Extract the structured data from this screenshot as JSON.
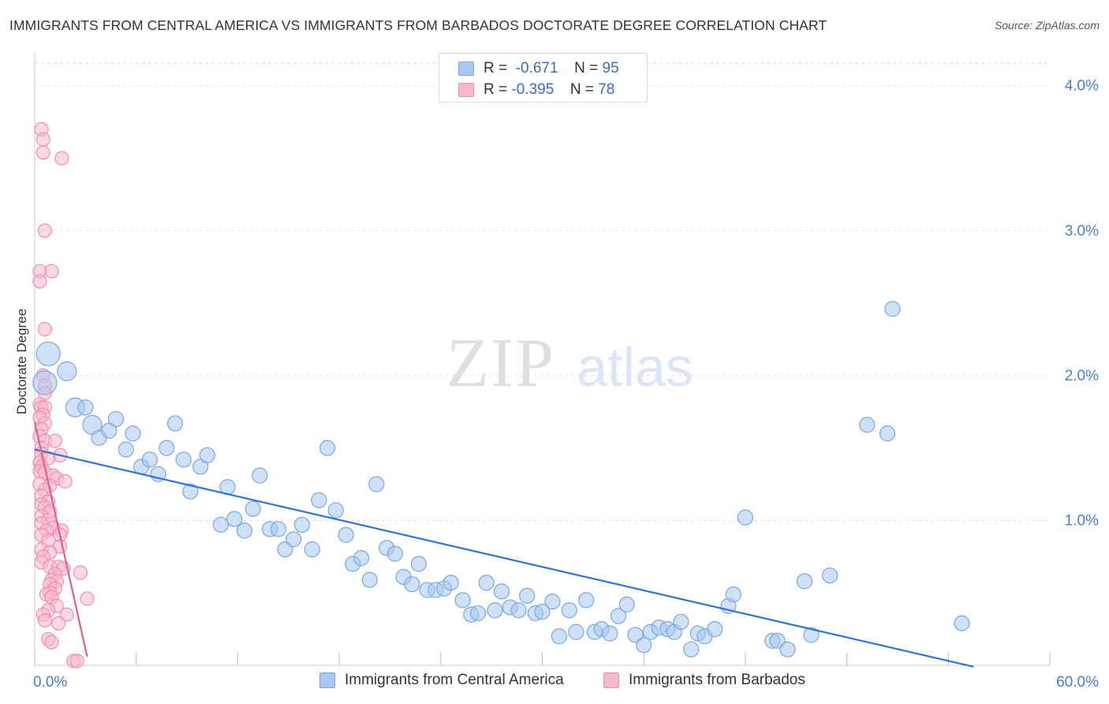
{
  "header": {
    "title": "IMMIGRANTS FROM CENTRAL AMERICA VS IMMIGRANTS FROM BARBADOS DOCTORATE DEGREE CORRELATION CHART",
    "source": "Source: ZipAtlas.com"
  },
  "watermark": {
    "zip": "ZIP",
    "atlas": "atlas"
  },
  "legend": {
    "rows": [
      {
        "r_label": "R =",
        "r_value": "-0.671",
        "n_label": "N =",
        "n_value": "95"
      },
      {
        "r_label": "R =",
        "r_value": "-0.395",
        "n_label": "N =",
        "n_value": "78"
      }
    ]
  },
  "colors": {
    "blue_fill": "#a8c8f0",
    "blue_stroke": "#7aa6e0",
    "blue_line": "#2f74d0",
    "pink_fill": "#f7b8cc",
    "pink_stroke": "#ee8fae",
    "pink_line": "#e0608a",
    "grid": "#dddddd",
    "axis_text": "#4a7cc9"
  },
  "chart_data": {
    "type": "scatter",
    "title": "IMMIGRANTS FROM CENTRAL AMERICA VS IMMIGRANTS FROM BARBADOS DOCTORATE DEGREE CORRELATION CHART",
    "xlabel": "",
    "ylabel": "Doctorate Degree",
    "xlim": [
      0,
      60
    ],
    "ylim": [
      0,
      4.2
    ],
    "x_tick_labels": [
      "0.0%",
      "60.0%"
    ],
    "y_ticks": [
      {
        "value": 1.0,
        "label": "1.0%"
      },
      {
        "value": 2.0,
        "label": "2.0%"
      },
      {
        "value": 3.0,
        "label": "3.0%"
      },
      {
        "value": 4.0,
        "label": "4.0%"
      }
    ],
    "legend_position": "top-center",
    "series": [
      {
        "name": "Immigrants from Central America",
        "color": "blue",
        "r": "-0.671",
        "n": "95",
        "trend": {
          "x": [
            0,
            55.5
          ],
          "y": [
            1.49,
            -0.01
          ]
        },
        "points": [
          [
            0.8,
            2.15,
            3
          ],
          [
            0.6,
            1.95,
            3
          ],
          [
            1.9,
            2.03,
            2
          ],
          [
            2.4,
            1.78,
            2
          ],
          [
            3.0,
            1.78,
            1
          ],
          [
            3.4,
            1.66,
            2
          ],
          [
            3.8,
            1.57,
            1
          ],
          [
            4.4,
            1.62,
            1
          ],
          [
            4.8,
            1.7,
            1
          ],
          [
            5.4,
            1.49,
            1
          ],
          [
            5.8,
            1.6,
            1
          ],
          [
            6.3,
            1.37,
            1
          ],
          [
            6.8,
            1.42,
            1
          ],
          [
            7.3,
            1.32,
            1
          ],
          [
            7.8,
            1.5,
            1
          ],
          [
            8.3,
            1.67,
            1
          ],
          [
            8.8,
            1.42,
            1
          ],
          [
            9.2,
            1.2,
            1
          ],
          [
            9.8,
            1.37,
            1
          ],
          [
            10.2,
            1.45,
            1
          ],
          [
            11.0,
            0.97,
            1
          ],
          [
            11.4,
            1.23,
            1
          ],
          [
            11.8,
            1.01,
            1
          ],
          [
            12.4,
            0.93,
            1
          ],
          [
            12.9,
            1.08,
            1
          ],
          [
            13.3,
            1.31,
            1
          ],
          [
            13.9,
            0.94,
            1
          ],
          [
            14.4,
            0.94,
            1
          ],
          [
            14.8,
            0.8,
            1
          ],
          [
            15.3,
            0.87,
            1
          ],
          [
            15.8,
            0.97,
            1
          ],
          [
            16.4,
            0.8,
            1
          ],
          [
            16.8,
            1.14,
            1
          ],
          [
            17.3,
            1.5,
            1
          ],
          [
            17.8,
            1.07,
            1
          ],
          [
            18.4,
            0.9,
            1
          ],
          [
            18.8,
            0.7,
            1
          ],
          [
            19.3,
            0.74,
            1
          ],
          [
            19.8,
            0.59,
            1
          ],
          [
            20.2,
            1.25,
            1
          ],
          [
            20.8,
            0.81,
            1
          ],
          [
            21.3,
            0.77,
            1
          ],
          [
            21.8,
            0.61,
            1
          ],
          [
            22.3,
            0.56,
            1
          ],
          [
            22.7,
            0.7,
            1
          ],
          [
            23.2,
            0.52,
            1
          ],
          [
            23.7,
            0.52,
            1
          ],
          [
            24.2,
            0.53,
            1
          ],
          [
            24.6,
            0.57,
            1
          ],
          [
            25.3,
            0.45,
            1
          ],
          [
            25.8,
            0.35,
            1
          ],
          [
            26.2,
            0.36,
            1
          ],
          [
            26.7,
            0.57,
            1
          ],
          [
            27.2,
            0.38,
            1
          ],
          [
            27.6,
            0.51,
            1
          ],
          [
            28.1,
            0.4,
            1
          ],
          [
            28.6,
            0.38,
            1
          ],
          [
            29.1,
            0.48,
            1
          ],
          [
            29.6,
            0.36,
            1
          ],
          [
            30.0,
            0.37,
            1
          ],
          [
            30.6,
            0.44,
            1
          ],
          [
            31.0,
            0.2,
            1
          ],
          [
            31.6,
            0.38,
            1
          ],
          [
            32.0,
            0.23,
            1
          ],
          [
            32.6,
            0.45,
            1
          ],
          [
            33.1,
            0.23,
            1
          ],
          [
            33.5,
            0.25,
            1
          ],
          [
            34.0,
            0.22,
            1
          ],
          [
            34.5,
            0.34,
            1
          ],
          [
            35.0,
            0.42,
            1
          ],
          [
            35.5,
            0.21,
            1
          ],
          [
            36.0,
            0.14,
            1
          ],
          [
            36.4,
            0.23,
            1
          ],
          [
            36.9,
            0.26,
            1
          ],
          [
            37.4,
            0.25,
            1
          ],
          [
            37.8,
            0.23,
            1
          ],
          [
            38.2,
            0.3,
            1
          ],
          [
            38.8,
            0.11,
            1
          ],
          [
            39.2,
            0.22,
            1
          ],
          [
            39.6,
            0.2,
            1
          ],
          [
            40.2,
            0.25,
            1
          ],
          [
            41.0,
            0.41,
            1
          ],
          [
            41.3,
            0.49,
            1
          ],
          [
            42.0,
            1.02,
            1
          ],
          [
            43.6,
            0.17,
            1
          ],
          [
            43.9,
            0.17,
            1
          ],
          [
            44.5,
            0.11,
            1
          ],
          [
            45.5,
            0.58,
            1
          ],
          [
            45.9,
            0.21,
            1
          ],
          [
            47.0,
            0.62,
            1
          ],
          [
            49.2,
            1.66,
            1
          ],
          [
            50.4,
            1.6,
            1
          ],
          [
            50.7,
            2.46,
            1
          ],
          [
            54.8,
            0.29,
            1
          ]
        ]
      },
      {
        "name": "Immigrants from Barbados",
        "color": "pink",
        "r": "-0.395",
        "n": "78",
        "trend": {
          "x": [
            0,
            3.1
          ],
          "y": [
            1.68,
            0.06
          ]
        },
        "points": [
          [
            0.4,
            3.7
          ],
          [
            0.5,
            3.63
          ],
          [
            0.5,
            3.54
          ],
          [
            1.6,
            3.5
          ],
          [
            0.6,
            3.0
          ],
          [
            0.3,
            2.72
          ],
          [
            1.0,
            2.72
          ],
          [
            0.3,
            2.65
          ],
          [
            0.6,
            2.32
          ],
          [
            0.5,
            2.0
          ],
          [
            0.6,
            1.93
          ],
          [
            0.6,
            1.88
          ],
          [
            0.3,
            1.8
          ],
          [
            0.4,
            1.78
          ],
          [
            0.6,
            1.78
          ],
          [
            0.5,
            1.73
          ],
          [
            0.3,
            1.71
          ],
          [
            0.6,
            1.67
          ],
          [
            0.4,
            1.63
          ],
          [
            0.3,
            1.58
          ],
          [
            0.6,
            1.55
          ],
          [
            1.2,
            1.55
          ],
          [
            0.4,
            1.5
          ],
          [
            0.4,
            1.46
          ],
          [
            1.5,
            1.45
          ],
          [
            0.8,
            1.43
          ],
          [
            0.3,
            1.4
          ],
          [
            0.4,
            1.37
          ],
          [
            0.3,
            1.34
          ],
          [
            0.6,
            1.33
          ],
          [
            1.1,
            1.31
          ],
          [
            1.3,
            1.29
          ],
          [
            1.8,
            1.27
          ],
          [
            0.3,
            1.25
          ],
          [
            0.9,
            1.24
          ],
          [
            0.6,
            1.21
          ],
          [
            0.4,
            1.17
          ],
          [
            0.8,
            1.13
          ],
          [
            0.4,
            1.11
          ],
          [
            0.6,
            1.09
          ],
          [
            0.9,
            1.06
          ],
          [
            0.4,
            1.03
          ],
          [
            0.8,
            1.0
          ],
          [
            0.4,
            0.98
          ],
          [
            1.1,
            0.95
          ],
          [
            1.6,
            0.93
          ],
          [
            0.7,
            0.93
          ],
          [
            0.4,
            0.9
          ],
          [
            1.5,
            0.9
          ],
          [
            0.8,
            0.86
          ],
          [
            1.5,
            0.82
          ],
          [
            0.4,
            0.8
          ],
          [
            0.9,
            0.78
          ],
          [
            0.5,
            0.75
          ],
          [
            0.4,
            0.71
          ],
          [
            0.9,
            0.68
          ],
          [
            1.4,
            0.68
          ],
          [
            1.7,
            0.67
          ],
          [
            2.7,
            0.64
          ],
          [
            1.2,
            0.63
          ],
          [
            1.0,
            0.59
          ],
          [
            1.3,
            0.58
          ],
          [
            0.9,
            0.56
          ],
          [
            1.2,
            0.53
          ],
          [
            0.9,
            0.5
          ],
          [
            0.7,
            0.49
          ],
          [
            1.0,
            0.47
          ],
          [
            3.1,
            0.46
          ],
          [
            1.3,
            0.41
          ],
          [
            0.8,
            0.38
          ],
          [
            0.5,
            0.35
          ],
          [
            1.9,
            0.35
          ],
          [
            0.6,
            0.31
          ],
          [
            1.4,
            0.29
          ],
          [
            0.8,
            0.18
          ],
          [
            1.0,
            0.16
          ],
          [
            2.3,
            0.03
          ],
          [
            2.5,
            0.03
          ]
        ]
      }
    ]
  }
}
